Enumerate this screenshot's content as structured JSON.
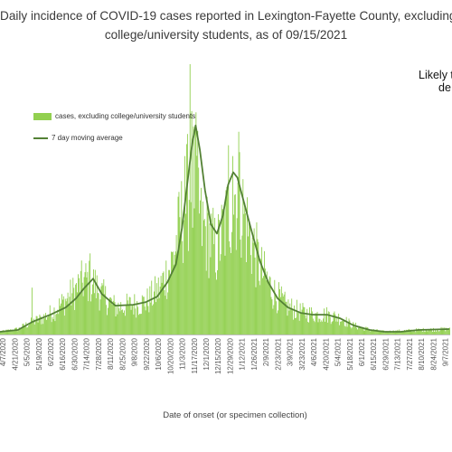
{
  "chart_data": {
    "type": "bar",
    "title_line1": "Daily incidence of COVID-19 cases reported in Lexington-Fayette County, excluding",
    "title_line2": "college/university students, as of 09/15/2021",
    "annotation_line1": "Likely t",
    "annotation_line2": "de",
    "xlabel": "Date of onset (or specimen collection)",
    "ylabel": "",
    "ylim": [
      0,
      305
    ],
    "x_start": "2020-04-07",
    "x_end": "2021-09-15",
    "tick_labels": [
      "4/7/2020",
      "4/21/2020",
      "5/5/2020",
      "5/19/2020",
      "6/2/2020",
      "6/16/2020",
      "6/30/2020",
      "7/14/2020",
      "7/28/2020",
      "8/11/2020",
      "8/25/2020",
      "9/8/2020",
      "9/22/2020",
      "10/6/2020",
      "10/20/2020",
      "11/3/2020",
      "11/17/2020",
      "12/1/2020",
      "12/15/2020",
      "12/29/2020",
      "1/12/2021",
      "1/26/2021",
      "2/9/2021",
      "2/23/2021",
      "3/9/2021",
      "3/23/2021",
      "4/6/2021",
      "4/20/2021",
      "5/4/2021",
      "5/18/2021",
      "6/1/2021",
      "6/15/2021",
      "6/29/2021",
      "7/13/2021",
      "7/27/2021",
      "8/10/2021",
      "8/24/2021",
      "9/7/2021"
    ],
    "legend_position": "upper-left",
    "grid": false,
    "series": [
      {
        "name": "cases, excluding college/university students",
        "kind": "bar",
        "color": "#92d050",
        "profile": [
          [
            "2020-04-07",
            3
          ],
          [
            "2020-04-28",
            6
          ],
          [
            "2020-05-10",
            12
          ],
          [
            "2020-05-26",
            18
          ],
          [
            "2020-06-09",
            26
          ],
          [
            "2020-06-30",
            45
          ],
          [
            "2020-07-14",
            60
          ],
          [
            "2020-07-24",
            58
          ],
          [
            "2020-08-03",
            45
          ],
          [
            "2020-08-20",
            30
          ],
          [
            "2020-09-10",
            33
          ],
          [
            "2020-09-25",
            36
          ],
          [
            "2020-10-10",
            50
          ],
          [
            "2020-10-24",
            78
          ],
          [
            "2020-11-03",
            118
          ],
          [
            "2020-11-13",
            160
          ],
          [
            "2020-11-22",
            175
          ],
          [
            "2020-11-28",
            120
          ],
          [
            "2020-12-08",
            108
          ],
          [
            "2020-12-16",
            92
          ],
          [
            "2020-12-26",
            120
          ],
          [
            "2021-01-06",
            158
          ],
          [
            "2021-01-14",
            145
          ],
          [
            "2021-01-24",
            108
          ],
          [
            "2021-02-07",
            70
          ],
          [
            "2021-02-20",
            48
          ],
          [
            "2021-03-07",
            32
          ],
          [
            "2021-03-24",
            25
          ],
          [
            "2021-04-10",
            22
          ],
          [
            "2021-04-25",
            22
          ],
          [
            "2021-05-10",
            18
          ],
          [
            "2021-05-25",
            10
          ],
          [
            "2021-06-15",
            5
          ],
          [
            "2021-07-01",
            3
          ],
          [
            "2021-07-20",
            4
          ],
          [
            "2021-08-10",
            5
          ],
          [
            "2021-09-15",
            6
          ]
        ],
        "spikes": [
          [
            "2020-05-14",
            52
          ],
          [
            "2020-07-21",
            90
          ],
          [
            "2020-11-09",
            198
          ],
          [
            "2020-11-15",
            300
          ],
          [
            "2020-11-17",
            248
          ],
          [
            "2020-11-21",
            228
          ],
          [
            "2021-01-04",
            198
          ],
          [
            "2021-01-11",
            225
          ],
          [
            "2020-12-30",
            210
          ]
        ]
      },
      {
        "name": "7 day moving average",
        "kind": "line",
        "color": "#538135",
        "values": [
          [
            "2020-04-07",
            3
          ],
          [
            "2020-04-28",
            5
          ],
          [
            "2020-05-15",
            14
          ],
          [
            "2020-06-05",
            22
          ],
          [
            "2020-06-23",
            30
          ],
          [
            "2020-07-05",
            40
          ],
          [
            "2020-07-15",
            52
          ],
          [
            "2020-07-25",
            62
          ],
          [
            "2020-08-04",
            45
          ],
          [
            "2020-08-20",
            32
          ],
          [
            "2020-09-10",
            33
          ],
          [
            "2020-09-25",
            36
          ],
          [
            "2020-10-08",
            42
          ],
          [
            "2020-10-20",
            58
          ],
          [
            "2020-10-30",
            78
          ],
          [
            "2020-11-06",
            118
          ],
          [
            "2020-11-12",
            165
          ],
          [
            "2020-11-18",
            212
          ],
          [
            "2020-11-22",
            232
          ],
          [
            "2020-11-27",
            205
          ],
          [
            "2020-12-03",
            160
          ],
          [
            "2020-12-10",
            122
          ],
          [
            "2020-12-17",
            112
          ],
          [
            "2020-12-24",
            132
          ],
          [
            "2020-12-30",
            166
          ],
          [
            "2021-01-05",
            180
          ],
          [
            "2021-01-10",
            174
          ],
          [
            "2021-01-15",
            156
          ],
          [
            "2021-01-25",
            120
          ],
          [
            "2021-02-05",
            82
          ],
          [
            "2021-02-15",
            58
          ],
          [
            "2021-02-26",
            40
          ],
          [
            "2021-03-10",
            30
          ],
          [
            "2021-03-25",
            24
          ],
          [
            "2021-04-08",
            22
          ],
          [
            "2021-04-25",
            22
          ],
          [
            "2021-05-10",
            18
          ],
          [
            "2021-05-26",
            10
          ],
          [
            "2021-06-14",
            5
          ],
          [
            "2021-07-01",
            3
          ],
          [
            "2021-07-20",
            3
          ],
          [
            "2021-08-10",
            5
          ],
          [
            "2021-09-15",
            6
          ]
        ]
      }
    ]
  }
}
